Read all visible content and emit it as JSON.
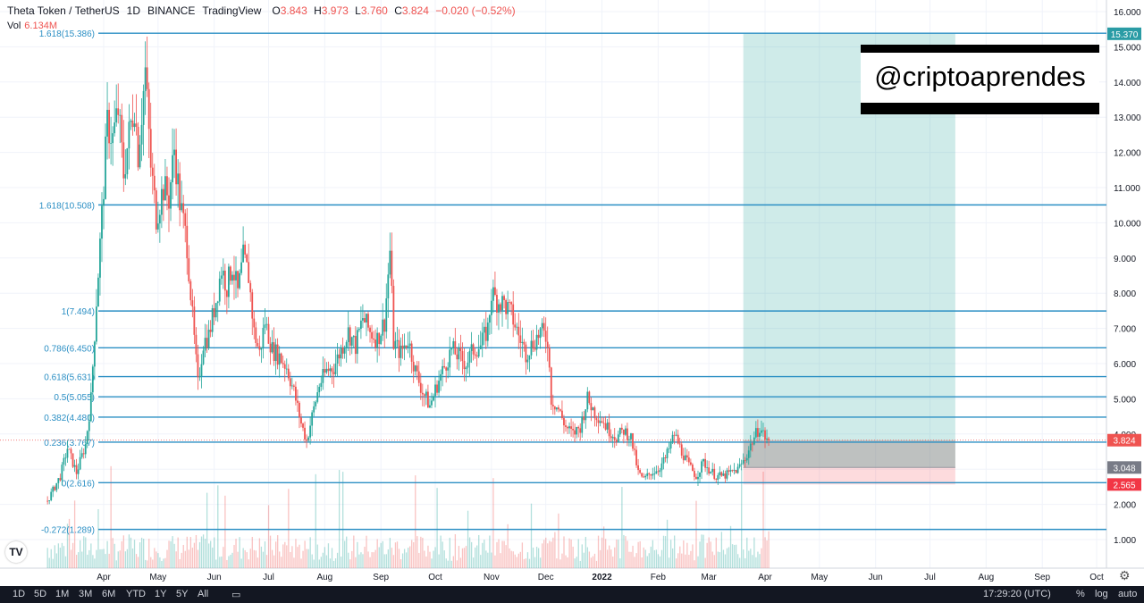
{
  "header": {
    "symbol": "Theta Token / TetherUS",
    "interval": "1D",
    "exchange": "BINANCE",
    "source": "TradingView",
    "open_label": "O",
    "open": "3.843",
    "high_label": "H",
    "high": "3.973",
    "low_label": "L",
    "low": "3.760",
    "close_label": "C",
    "close": "3.824",
    "change": "−0.020 (−0.52%)"
  },
  "volume": {
    "label": "Vol",
    "value": "6.134M"
  },
  "watermark": "@criptoaprendes",
  "bottom_bar": {
    "ranges": [
      "1D",
      "5D",
      "1M",
      "3M",
      "6M",
      "YTD",
      "1Y",
      "5Y",
      "All"
    ],
    "time": "17:29:20 (UTC)",
    "percent": "%",
    "log": "log",
    "auto": "auto"
  },
  "chart_data": {
    "type": "candlestick",
    "y_axis": {
      "range": [
        0.3,
        16.3
      ],
      "ticks": [
        "1.000",
        "2.000",
        "3.000",
        "4.000",
        "5.000",
        "6.000",
        "7.000",
        "8.000",
        "9.000",
        "10.000",
        "11.000",
        "12.000",
        "13.000",
        "14.000",
        "15.000",
        "16.000"
      ],
      "tick_values": [
        1,
        2,
        3,
        4,
        5,
        6,
        7,
        8,
        9,
        10,
        11,
        12,
        13,
        14,
        15,
        16
      ]
    },
    "x_axis": {
      "labels": [
        "Apr",
        "May",
        "Jun",
        "Jul",
        "Aug",
        "Sep",
        "Oct",
        "Nov",
        "Dec",
        "2022",
        "Feb",
        "Mar",
        "Apr",
        "May",
        "Jun",
        "Jul",
        "Aug",
        "Sep",
        "Oct"
      ],
      "dates": [
        "2021-04-01",
        "2021-05-01",
        "2021-06-01",
        "2021-07-01",
        "2021-08-01",
        "2021-09-01",
        "2021-10-01",
        "2021-11-01",
        "2021-12-01",
        "2022-01-01",
        "2022-02-01",
        "2022-03-01",
        "2022-04-01",
        "2022-05-01",
        "2022-06-01",
        "2022-07-01",
        "2022-08-01",
        "2022-09-01",
        "2022-10-01"
      ],
      "range": [
        "2021-03-01",
        "2022-10-01"
      ],
      "note_mar_2022_label_hidden": true
    },
    "fib_levels": [
      {
        "label": "1.618(15.386)",
        "value": 15.386
      },
      {
        "label": "1.618(10.508)",
        "value": 10.508
      },
      {
        "label": "1(7.494)",
        "value": 7.494
      },
      {
        "label": "0.786(6.450)",
        "value": 6.45
      },
      {
        "label": "0.618(5.631)",
        "value": 5.631
      },
      {
        "label": "0.5(5.055)",
        "value": 5.055
      },
      {
        "label": "0.382(4.480)",
        "value": 4.48
      },
      {
        "label": "0.236(3.767)",
        "value": 3.767
      },
      {
        "label": "0(2.616)",
        "value": 2.616
      },
      {
        "label": "-0.272(1.289)",
        "value": 1.289
      }
    ],
    "position": {
      "type": "long",
      "start": "2022-03-20",
      "end": "2022-07-15",
      "entry": 3.824,
      "target": 15.37,
      "stop": 2.565,
      "extra_level": 3.048
    },
    "price_tags": [
      {
        "value": 15.37,
        "text": "15.370",
        "color": "#2a9ca5"
      },
      {
        "value": 3.824,
        "text": "3.824",
        "color": "#ef5350"
      },
      {
        "value": 3.048,
        "text": "3.048",
        "color": "#787b86"
      },
      {
        "value": 2.565,
        "text": "2.565",
        "color": "#f23645"
      }
    ],
    "price_path": [
      [
        "2021-03-01",
        2.1
      ],
      [
        "2021-03-08",
        2.8
      ],
      [
        "2021-03-12",
        3.6
      ],
      [
        "2021-03-17",
        2.9
      ],
      [
        "2021-03-22",
        3.7
      ],
      [
        "2021-03-25",
        5.0
      ],
      [
        "2021-03-28",
        7.8
      ],
      [
        "2021-03-31",
        10.2
      ],
      [
        "2021-04-03",
        12.8
      ],
      [
        "2021-04-06",
        12.4
      ],
      [
        "2021-04-09",
        13.2
      ],
      [
        "2021-04-12",
        11.4
      ],
      [
        "2021-04-15",
        12.5
      ],
      [
        "2021-04-18",
        13.4
      ],
      [
        "2021-04-20",
        12.0
      ],
      [
        "2021-04-24",
        14.3
      ],
      [
        "2021-04-27",
        11.6
      ],
      [
        "2021-04-30",
        10.2
      ],
      [
        "2021-05-04",
        11.0
      ],
      [
        "2021-05-07",
        10.7
      ],
      [
        "2021-05-10",
        12.1
      ],
      [
        "2021-05-13",
        10.6
      ],
      [
        "2021-05-17",
        9.4
      ],
      [
        "2021-05-20",
        7.3
      ],
      [
        "2021-05-23",
        5.4
      ],
      [
        "2021-05-26",
        6.6
      ],
      [
        "2021-05-29",
        6.8
      ],
      [
        "2021-06-02",
        7.8
      ],
      [
        "2021-06-05",
        8.7
      ],
      [
        "2021-06-08",
        8.2
      ],
      [
        "2021-06-11",
        8.8
      ],
      [
        "2021-06-14",
        8.0
      ],
      [
        "2021-06-17",
        9.0
      ],
      [
        "2021-06-20",
        8.5
      ],
      [
        "2021-06-23",
        6.9
      ],
      [
        "2021-06-26",
        6.3
      ],
      [
        "2021-06-29",
        7.2
      ],
      [
        "2021-07-03",
        6.4
      ],
      [
        "2021-07-07",
        6.2
      ],
      [
        "2021-07-11",
        5.9
      ],
      [
        "2021-07-15",
        5.2
      ],
      [
        "2021-07-19",
        4.3
      ],
      [
        "2021-07-22",
        3.8
      ],
      [
        "2021-07-25",
        4.5
      ],
      [
        "2021-07-29",
        5.4
      ],
      [
        "2021-08-02",
        5.8
      ],
      [
        "2021-08-06",
        5.9
      ],
      [
        "2021-08-10",
        6.4
      ],
      [
        "2021-08-14",
        6.9
      ],
      [
        "2021-08-18",
        6.5
      ],
      [
        "2021-08-22",
        7.3
      ],
      [
        "2021-08-26",
        6.9
      ],
      [
        "2021-08-30",
        6.7
      ],
      [
        "2021-09-03",
        7.2
      ],
      [
        "2021-09-06",
        9.2
      ],
      [
        "2021-09-08",
        6.6
      ],
      [
        "2021-09-12",
        6.3
      ],
      [
        "2021-09-16",
        6.7
      ],
      [
        "2021-09-20",
        5.8
      ],
      [
        "2021-09-24",
        5.2
      ],
      [
        "2021-09-28",
        4.8
      ],
      [
        "2021-10-02",
        5.4
      ],
      [
        "2021-10-06",
        5.9
      ],
      [
        "2021-10-10",
        6.4
      ],
      [
        "2021-10-14",
        6.2
      ],
      [
        "2021-10-18",
        6.0
      ],
      [
        "2021-10-22",
        6.4
      ],
      [
        "2021-10-26",
        6.5
      ],
      [
        "2021-10-30",
        7.0
      ],
      [
        "2021-11-01",
        8.0
      ],
      [
        "2021-11-04",
        7.8
      ],
      [
        "2021-11-08",
        7.7
      ],
      [
        "2021-11-12",
        7.4
      ],
      [
        "2021-11-16",
        6.8
      ],
      [
        "2021-11-20",
        6.3
      ],
      [
        "2021-11-24",
        6.6
      ],
      [
        "2021-11-28",
        6.9
      ],
      [
        "2021-12-02",
        6.7
      ],
      [
        "2021-12-04",
        5.0
      ],
      [
        "2021-12-08",
        4.7
      ],
      [
        "2021-12-12",
        4.2
      ],
      [
        "2021-12-16",
        4.0
      ],
      [
        "2021-12-20",
        4.2
      ],
      [
        "2021-12-24",
        5.0
      ],
      [
        "2021-12-28",
        4.6
      ],
      [
        "2022-01-01",
        4.4
      ],
      [
        "2022-01-05",
        4.1
      ],
      [
        "2022-01-09",
        3.9
      ],
      [
        "2022-01-13",
        4.1
      ],
      [
        "2022-01-17",
        3.9
      ],
      [
        "2022-01-21",
        2.9
      ],
      [
        "2022-01-24",
        2.7
      ],
      [
        "2022-01-28",
        2.9
      ],
      [
        "2022-02-01",
        3.0
      ],
      [
        "2022-02-05",
        3.3
      ],
      [
        "2022-02-10",
        4.0
      ],
      [
        "2022-02-14",
        3.5
      ],
      [
        "2022-02-18",
        3.1
      ],
      [
        "2022-02-22",
        2.8
      ],
      [
        "2022-02-26",
        3.2
      ],
      [
        "2022-03-01",
        3.0
      ],
      [
        "2022-03-05",
        2.8
      ],
      [
        "2022-03-09",
        2.8
      ],
      [
        "2022-03-13",
        2.9
      ],
      [
        "2022-03-17",
        3.0
      ],
      [
        "2022-03-21",
        3.3
      ],
      [
        "2022-03-25",
        3.8
      ],
      [
        "2022-03-29",
        4.2
      ],
      [
        "2022-04-01",
        3.9
      ],
      [
        "2022-04-03",
        3.824
      ]
    ],
    "volume_range": [
      "2021-03-01",
      "2022-04-03"
    ]
  }
}
